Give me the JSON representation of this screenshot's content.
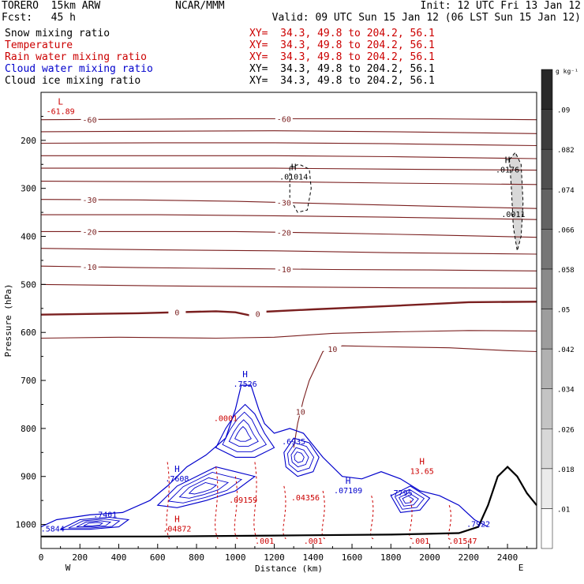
{
  "header": {
    "model": "TORERO  15km ARW",
    "center": "NCAR/MMM",
    "init": "Init: 12 UTC Fri 13 Jan 12",
    "fcst": "Fcst:   45 h",
    "valid": "Valid: 09 UTC Sun 15 Jan 12 (06 LST Sun 15 Jan 12)"
  },
  "fields": [
    {
      "name": "Snow mixing ratio",
      "xy": "XY=  34.3, 49.8 to 204.2, 56.1",
      "color": "#000000",
      "xy_color": "#cc0000"
    },
    {
      "name": "Temperature",
      "xy": "XY=  34.3, 49.8 to 204.2, 56.1",
      "color": "#cc0000",
      "xy_color": "#cc0000"
    },
    {
      "name": "Rain water mixing ratio",
      "xy": "XY=  34.3, 49.8 to 204.2, 56.1",
      "color": "#cc0000",
      "xy_color": "#cc0000"
    },
    {
      "name": "Cloud water mixing ratio",
      "xy": "XY=  34.3, 49.8 to 204.2, 56.1",
      "color": "#0000cc",
      "xy_color": "#000000"
    },
    {
      "name": "Cloud ice mixing ratio",
      "xy": "XY=  34.3, 49.8 to 204.2, 56.1",
      "color": "#000000",
      "xy_color": "#000000"
    }
  ],
  "chart_data": {
    "type": "contour",
    "xlabel": "Distance (km)",
    "ylabel": "Pressure (hPa)",
    "xlim": [
      0,
      2550
    ],
    "ylim": [
      1050,
      100
    ],
    "x_ticks": [
      0,
      200,
      400,
      600,
      800,
      1000,
      1200,
      1400,
      1600,
      1800,
      2000,
      2200,
      2400
    ],
    "y_ticks": [
      200,
      300,
      400,
      500,
      600,
      700,
      800,
      900,
      1000
    ],
    "x_end_labels": {
      "left": "W",
      "right": "E"
    },
    "colorbar": {
      "unit": "g kg⁻¹",
      "levels": [
        ".01",
        ".018",
        ".026",
        ".034",
        ".042",
        ".05",
        ".058",
        ".066",
        ".074",
        ".082",
        ".09"
      ]
    },
    "temperature_isotherms": [
      {
        "value": -60,
        "label": "-60",
        "points": [
          [
            0,
            157
          ],
          [
            500,
            156
          ],
          [
            1000,
            155
          ],
          [
            1500,
            155
          ],
          [
            2000,
            155
          ],
          [
            2550,
            157
          ]
        ]
      },
      {
        "value": -55,
        "points": [
          [
            0,
            182
          ],
          [
            600,
            181
          ],
          [
            1200,
            180
          ],
          [
            1800,
            182
          ],
          [
            2550,
            186
          ]
        ]
      },
      {
        "value": -50,
        "points": [
          [
            0,
            206
          ],
          [
            600,
            205
          ],
          [
            1200,
            205
          ],
          [
            1800,
            207
          ],
          [
            2550,
            211
          ]
        ]
      },
      {
        "value": -45,
        "points": [
          [
            0,
            232
          ],
          [
            600,
            232
          ],
          [
            1200,
            232
          ],
          [
            1800,
            234
          ],
          [
            2550,
            238
          ]
        ]
      },
      {
        "value": -40,
        "points": [
          [
            0,
            258
          ],
          [
            600,
            258
          ],
          [
            1200,
            258
          ],
          [
            1800,
            260
          ],
          [
            2550,
            262
          ]
        ]
      },
      {
        "value": -35,
        "points": [
          [
            0,
            285
          ],
          [
            600,
            286
          ],
          [
            1200,
            286
          ],
          [
            1800,
            289
          ],
          [
            2550,
            292
          ]
        ]
      },
      {
        "value": -30,
        "label": "-30",
        "points": [
          [
            0,
            323
          ],
          [
            500,
            324
          ],
          [
            1000,
            327
          ],
          [
            1500,
            332
          ],
          [
            2000,
            337
          ],
          [
            2550,
            342
          ]
        ]
      },
      {
        "value": -25,
        "points": [
          [
            0,
            355
          ],
          [
            600,
            355
          ],
          [
            1200,
            357
          ],
          [
            1800,
            360
          ],
          [
            2550,
            365
          ]
        ]
      },
      {
        "value": -20,
        "label": "-20",
        "points": [
          [
            0,
            390
          ],
          [
            500,
            390
          ],
          [
            1000,
            390
          ],
          [
            1500,
            393
          ],
          [
            2000,
            397
          ],
          [
            2550,
            402
          ]
        ]
      },
      {
        "value": -15,
        "points": [
          [
            0,
            425
          ],
          [
            600,
            428
          ],
          [
            1200,
            430
          ],
          [
            1800,
            434
          ],
          [
            2550,
            437
          ]
        ]
      },
      {
        "value": -10,
        "label": "-10",
        "points": [
          [
            0,
            462
          ],
          [
            500,
            465
          ],
          [
            1000,
            467
          ],
          [
            1500,
            469
          ],
          [
            2000,
            470
          ],
          [
            2550,
            472
          ]
        ]
      },
      {
        "value": -5,
        "points": [
          [
            0,
            500
          ],
          [
            600,
            503
          ],
          [
            1200,
            505
          ],
          [
            1800,
            507
          ],
          [
            2550,
            508
          ]
        ]
      },
      {
        "value": 0,
        "label": "0",
        "points": [
          [
            0,
            563
          ],
          [
            500,
            560
          ],
          [
            900,
            556
          ],
          [
            1000,
            558
          ],
          [
            1080,
            565
          ],
          [
            1150,
            557
          ],
          [
            1400,
            552
          ],
          [
            1800,
            545
          ],
          [
            2200,
            537
          ],
          [
            2550,
            536
          ]
        ]
      },
      {
        "value": 5,
        "points": [
          [
            0,
            612
          ],
          [
            400,
            610
          ],
          [
            900,
            612
          ],
          [
            1200,
            610
          ],
          [
            1500,
            602
          ],
          [
            1800,
            599
          ],
          [
            2200,
            596
          ],
          [
            2550,
            597
          ]
        ]
      },
      {
        "value": 10,
        "label": "10",
        "points": [
          [
            1300,
            840
          ],
          [
            1320,
            790
          ],
          [
            1350,
            740
          ],
          [
            1380,
            700
          ],
          [
            1450,
            640
          ],
          [
            1550,
            628
          ],
          [
            1800,
            630
          ],
          [
            2100,
            632
          ],
          [
            2400,
            638
          ],
          [
            2550,
            640
          ]
        ]
      }
    ],
    "maxima": [
      {
        "label": "L",
        "value": "-61.89",
        "x": 100,
        "p": 140,
        "color": "#cc0000"
      },
      {
        "label": "H",
        "value": ".01014",
        "x": 1300,
        "p": 277,
        "color": "#000000"
      },
      {
        "label": "H",
        "value": ".0176",
        "x": 2400,
        "p": 262,
        "color": "#000000"
      },
      {
        "label": "",
        "value": ".0011",
        "x": 2430,
        "p": 355,
        "color": "#000000"
      },
      {
        "label": "H",
        "value": ".7526",
        "x": 1050,
        "p": 708,
        "color": "#0000cc"
      },
      {
        "label": "H",
        "value": "13.65",
        "x": 1960,
        "p": 890,
        "color": "#cc0000"
      },
      {
        "label": "",
        "value": ".6935",
        "x": 1300,
        "p": 828,
        "color": "#0000cc"
      },
      {
        "label": "H",
        "value": ".7608",
        "x": 700,
        "p": 905,
        "color": "#0000cc"
      },
      {
        "label": "H",
        "value": ".07109",
        "x": 1580,
        "p": 930,
        "color": "#0000cc"
      },
      {
        "label": "",
        "value": ".7795",
        "x": 1850,
        "p": 935,
        "color": "#0000cc"
      },
      {
        "label": "",
        "value": ".7922",
        "x": 2250,
        "p": 1000,
        "color": "#0000cc"
      },
      {
        "label": "",
        "value": ".7401",
        "x": 330,
        "p": 980,
        "color": "#0000cc"
      },
      {
        "label": "",
        "value": ".5844",
        "x": 60,
        "p": 1010,
        "color": "#0000cc"
      },
      {
        "label": "H",
        "value": ".04872",
        "x": 700,
        "p": 1010,
        "color": "#cc0000"
      },
      {
        "label": "",
        "value": ".0001",
        "x": 950,
        "p": 780,
        "color": "#cc0000"
      },
      {
        "label": "",
        "value": ".09159",
        "x": 1040,
        "p": 950,
        "color": "#cc0000"
      },
      {
        "label": "",
        "value": ".04356",
        "x": 1360,
        "p": 945,
        "color": "#cc0000"
      },
      {
        "label": "",
        "value": ".01547",
        "x": 2170,
        "p": 1035,
        "color": "#cc0000"
      },
      {
        "label": "",
        "value": ".001",
        "x": 1400,
        "p": 1035,
        "color": "#cc0000"
      },
      {
        "label": "",
        "value": ".001",
        "x": 1950,
        "p": 1035,
        "color": "#cc0000"
      },
      {
        "label": "",
        "value": ".001",
        "x": 1150,
        "p": 1035,
        "color": "#cc0000"
      }
    ],
    "cloud_water_envelope": [
      [
        0,
        1005
      ],
      [
        80,
        990
      ],
      [
        250,
        980
      ],
      [
        420,
        975
      ],
      [
        560,
        950
      ],
      [
        650,
        920
      ],
      [
        750,
        880
      ],
      [
        850,
        855
      ],
      [
        950,
        820
      ],
      [
        1000,
        760
      ],
      [
        1030,
        710
      ],
      [
        1080,
        710
      ],
      [
        1120,
        760
      ],
      [
        1150,
        790
      ],
      [
        1200,
        810
      ],
      [
        1280,
        800
      ],
      [
        1350,
        810
      ],
      [
        1450,
        860
      ],
      [
        1550,
        900
      ],
      [
        1650,
        905
      ],
      [
        1750,
        890
      ],
      [
        1850,
        905
      ],
      [
        1950,
        930
      ],
      [
        2050,
        940
      ],
      [
        2150,
        960
      ],
      [
        2230,
        990
      ],
      [
        2300,
        1005
      ]
    ],
    "cloud_water_inner": [
      [
        [
          900,
          840
        ],
        [
          950,
          800
        ],
        [
          1000,
          770
        ],
        [
          1050,
          750
        ],
        [
          1100,
          770
        ],
        [
          1150,
          810
        ],
        [
          1200,
          840
        ],
        [
          1100,
          860
        ],
        [
          1000,
          860
        ],
        [
          900,
          840
        ]
      ],
      [
        [
          600,
          960
        ],
        [
          700,
          920
        ],
        [
          800,
          900
        ],
        [
          900,
          880
        ],
        [
          1000,
          890
        ],
        [
          1100,
          900
        ],
        [
          1000,
          930
        ],
        [
          850,
          950
        ],
        [
          700,
          965
        ],
        [
          600,
          960
        ]
      ],
      [
        [
          1250,
          850
        ],
        [
          1300,
          820
        ],
        [
          1380,
          830
        ],
        [
          1430,
          860
        ],
        [
          1400,
          890
        ],
        [
          1320,
          900
        ],
        [
          1260,
          880
        ],
        [
          1250,
          850
        ]
      ],
      [
        [
          1800,
          940
        ],
        [
          1900,
          920
        ],
        [
          2000,
          945
        ],
        [
          1950,
          970
        ],
        [
          1850,
          975
        ],
        [
          1800,
          940
        ]
      ],
      [
        [
          100,
          1010
        ],
        [
          200,
          990
        ],
        [
          350,
          985
        ],
        [
          450,
          990
        ],
        [
          400,
          1005
        ],
        [
          250,
          1010
        ],
        [
          100,
          1010
        ]
      ]
    ],
    "terrain": [
      [
        0,
        1025
      ],
      [
        600,
        1025
      ],
      [
        1200,
        1023
      ],
      [
        1800,
        1021
      ],
      [
        2150,
        1018
      ],
      [
        2250,
        1005
      ],
      [
        2300,
        960
      ],
      [
        2350,
        900
      ],
      [
        2400,
        880
      ],
      [
        2450,
        900
      ],
      [
        2500,
        935
      ],
      [
        2550,
        960
      ]
    ],
    "ice_contours": [
      [
        [
          1280,
          255
        ],
        [
          1330,
          250
        ],
        [
          1380,
          260
        ],
        [
          1390,
          300
        ],
        [
          1370,
          345
        ],
        [
          1320,
          350
        ],
        [
          1280,
          320
        ],
        [
          1280,
          255
        ]
      ],
      [
        [
          2410,
          240
        ],
        [
          2440,
          225
        ],
        [
          2470,
          250
        ],
        [
          2480,
          330
        ],
        [
          2470,
          400
        ],
        [
          2450,
          430
        ],
        [
          2430,
          380
        ],
        [
          2420,
          300
        ],
        [
          2410,
          240
        ]
      ]
    ]
  }
}
